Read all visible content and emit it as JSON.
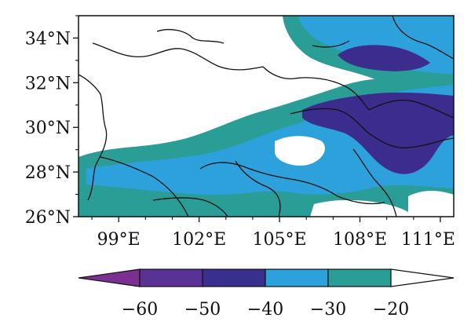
{
  "map": {
    "lat_ticks": [
      {
        "value": 34,
        "label": "34°N"
      },
      {
        "value": 32,
        "label": "32°N"
      },
      {
        "value": 30,
        "label": "30°N"
      },
      {
        "value": 28,
        "label": "28°N"
      },
      {
        "value": 26,
        "label": "26°N"
      }
    ],
    "lon_ticks": [
      {
        "value": 99,
        "label": "99°E"
      },
      {
        "value": 102,
        "label": "102°E"
      },
      {
        "value": 105,
        "label": "105°E"
      },
      {
        "value": 108,
        "label": "108°E"
      },
      {
        "value": 111,
        "label": "111°E"
      }
    ],
    "extent": {
      "lon": [
        97.5,
        111.5
      ],
      "lat": [
        26,
        35
      ]
    }
  },
  "colorbar": {
    "colors": {
      "below_min": "#7b2f93",
      "bin_60_50": "#5a3296",
      "bin_50_40": "#3a2f8f",
      "bin_40_30": "#2da1db",
      "bin_30_20": "#2a9e96",
      "above_max": "#ffffff"
    },
    "labels": [
      "−60",
      "−50",
      "−40",
      "−30",
      "−20"
    ]
  },
  "colors": {
    "teal": "#2a9e96",
    "light_blue": "#2da1db",
    "dark_purple": "#3b2c8e",
    "boundary": "#111111"
  }
}
